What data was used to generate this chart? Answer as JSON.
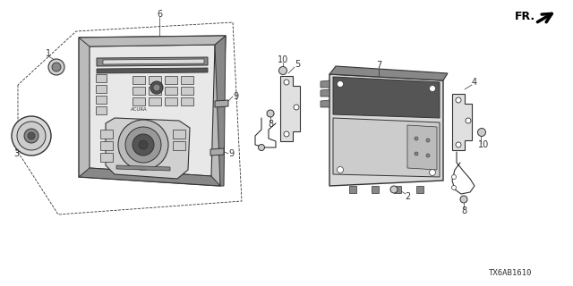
{
  "background_color": "#ffffff",
  "line_color": "#333333",
  "gray_light": "#bbbbbb",
  "gray_mid": "#888888",
  "gray_dark": "#555555",
  "watermark": "TX6AB1610",
  "fr_label": "FR.",
  "fig_width": 6.4,
  "fig_height": 3.2,
  "dpi": 100
}
